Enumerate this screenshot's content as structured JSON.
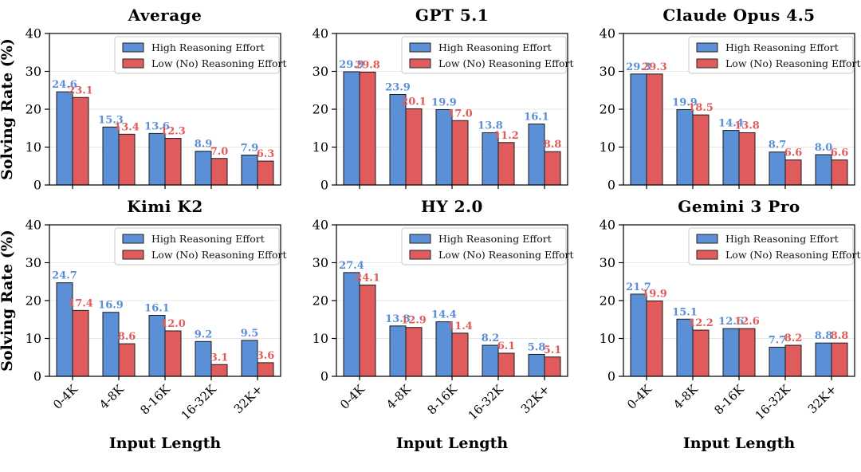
{
  "figure": {
    "ylabel": "Solving Rate (%)",
    "xlabel": "Input Length",
    "legend": [
      "High Reasoning Effort",
      "Low (No) Reasoning Effort"
    ],
    "colors": {
      "high": "#5b8fd6",
      "low": "#e05c5c",
      "edge": "#1a1a1a",
      "grid": "#e7e7e7",
      "spine": "#000000"
    }
  },
  "chart_data": [
    {
      "type": "bar",
      "title": "Average",
      "categories": [
        "0-4K",
        "4-8K",
        "8-16K",
        "16-32K",
        "32K+"
      ],
      "series": [
        {
          "name": "High Reasoning Effort",
          "color": "#5b8fd6",
          "values": [
            24.6,
            15.3,
            13.6,
            8.9,
            7.9
          ]
        },
        {
          "name": "Low (No) Reasoning Effort",
          "color": "#e05c5c",
          "values": [
            23.1,
            13.4,
            12.3,
            7.0,
            6.3
          ]
        }
      ],
      "ylabel": "Solving Rate (%)",
      "xlabel": "Input Length",
      "ylim": [
        0,
        40
      ],
      "yticks": [
        0,
        10,
        20,
        30,
        40
      ],
      "grid": true,
      "legend_position": "upper right",
      "show_ylabel": true,
      "show_xticklabels": false,
      "show_xlabel": false
    },
    {
      "type": "bar",
      "title": "GPT 5.1",
      "categories": [
        "0-4K",
        "4-8K",
        "8-16K",
        "16-32K",
        "32K+"
      ],
      "series": [
        {
          "name": "High Reasoning Effort",
          "color": "#5b8fd6",
          "values": [
            29.9,
            23.9,
            19.9,
            13.8,
            16.1
          ]
        },
        {
          "name": "Low (No) Reasoning Effort",
          "color": "#e05c5c",
          "values": [
            29.8,
            20.1,
            17.0,
            11.2,
            8.8
          ]
        }
      ],
      "ylabel": "Solving Rate (%)",
      "xlabel": "Input Length",
      "ylim": [
        0,
        40
      ],
      "yticks": [
        0,
        10,
        20,
        30,
        40
      ],
      "grid": true,
      "legend_position": "upper right",
      "show_ylabel": false,
      "show_xticklabels": false,
      "show_xlabel": false
    },
    {
      "type": "bar",
      "title": "Claude Opus 4.5",
      "categories": [
        "0-4K",
        "4-8K",
        "8-16K",
        "16-32K",
        "32K+"
      ],
      "series": [
        {
          "name": "High Reasoning Effort",
          "color": "#5b8fd6",
          "values": [
            29.3,
            19.9,
            14.4,
            8.7,
            8.0
          ]
        },
        {
          "name": "Low (No) Reasoning Effort",
          "color": "#e05c5c",
          "values": [
            29.3,
            18.5,
            13.8,
            6.6,
            6.6
          ]
        }
      ],
      "ylabel": "Solving Rate (%)",
      "xlabel": "Input Length",
      "ylim": [
        0,
        40
      ],
      "yticks": [
        0,
        10,
        20,
        30,
        40
      ],
      "grid": true,
      "legend_position": "upper right",
      "show_ylabel": false,
      "show_xticklabels": false,
      "show_xlabel": false
    },
    {
      "type": "bar",
      "title": "Kimi K2",
      "categories": [
        "0-4K",
        "4-8K",
        "8-16K",
        "16-32K",
        "32K+"
      ],
      "series": [
        {
          "name": "High Reasoning Effort",
          "color": "#5b8fd6",
          "values": [
            24.7,
            16.9,
            16.1,
            9.2,
            9.5
          ]
        },
        {
          "name": "Low (No) Reasoning Effort",
          "color": "#e05c5c",
          "values": [
            17.4,
            8.6,
            12.0,
            3.1,
            3.6
          ]
        }
      ],
      "ylabel": "Solving Rate (%)",
      "xlabel": "Input Length",
      "ylim": [
        0,
        40
      ],
      "yticks": [
        0,
        10,
        20,
        30,
        40
      ],
      "grid": true,
      "legend_position": "upper right",
      "show_ylabel": true,
      "show_xticklabels": true,
      "show_xlabel": true
    },
    {
      "type": "bar",
      "title": "HY 2.0",
      "categories": [
        "0-4K",
        "4-8K",
        "8-16K",
        "16-32K",
        "32K+"
      ],
      "series": [
        {
          "name": "High Reasoning Effort",
          "color": "#5b8fd6",
          "values": [
            27.4,
            13.3,
            14.4,
            8.2,
            5.8
          ]
        },
        {
          "name": "Low (No) Reasoning Effort",
          "color": "#e05c5c",
          "values": [
            24.1,
            12.9,
            11.4,
            6.1,
            5.1
          ]
        }
      ],
      "ylabel": "Solving Rate (%)",
      "xlabel": "Input Length",
      "ylim": [
        0,
        40
      ],
      "yticks": [
        0,
        10,
        20,
        30,
        40
      ],
      "grid": true,
      "legend_position": "upper right",
      "show_ylabel": false,
      "show_xticklabels": true,
      "show_xlabel": true
    },
    {
      "type": "bar",
      "title": "Gemini 3 Pro",
      "categories": [
        "0-4K",
        "4-8K",
        "8-16K",
        "16-32K",
        "32K+"
      ],
      "series": [
        {
          "name": "High Reasoning Effort",
          "color": "#5b8fd6",
          "values": [
            21.7,
            15.1,
            12.6,
            7.7,
            8.8
          ]
        },
        {
          "name": "Low (No) Reasoning Effort",
          "color": "#e05c5c",
          "values": [
            19.9,
            12.2,
            12.6,
            8.2,
            8.8
          ]
        }
      ],
      "ylabel": "Solving Rate (%)",
      "xlabel": "Input Length",
      "ylim": [
        0,
        40
      ],
      "yticks": [
        0,
        10,
        20,
        30,
        40
      ],
      "grid": true,
      "legend_position": "upper right",
      "show_ylabel": false,
      "show_xticklabels": true,
      "show_xlabel": true
    }
  ]
}
